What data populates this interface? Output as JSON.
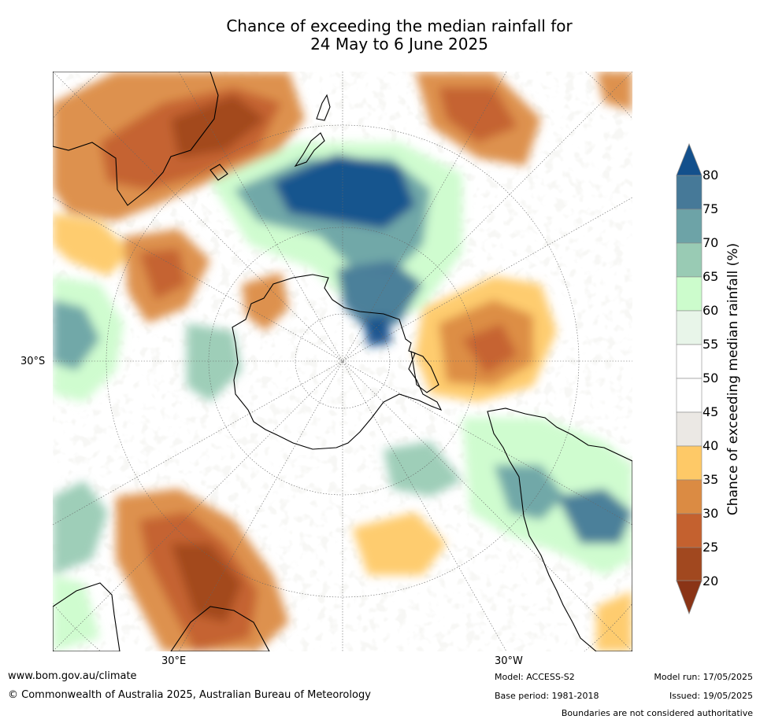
{
  "header": {
    "title_line1": "Chance of exceeding the median rainfall for",
    "title_line2": "24 May to 6 June 2025"
  },
  "map": {
    "lat_label": "30°S",
    "lon_label_east": "30°E",
    "lon_label_west": "30°W",
    "colors": {
      "c20": "#a1481f",
      "c25": "#c4612f",
      "c30": "#db8b43",
      "c35": "#fec967",
      "c40": "#ebe8e4",
      "c45": "#ffffff",
      "c50": "#ffffff",
      "c55": "#e8f5e9",
      "c60": "#ccfccc",
      "c65": "#99cbb4",
      "c70": "#6da3a7",
      "c75": "#467998",
      "c80": "#13508c"
    }
  },
  "colorbar": {
    "title": "Chance of exceeding median rainfall (%)",
    "ticks": [
      "80",
      "75",
      "70",
      "65",
      "60",
      "55",
      "50",
      "45",
      "40",
      "35",
      "30",
      "25",
      "20"
    ],
    "top_arrow_color": "#13508c",
    "bottom_arrow_color": "#8a3416"
  },
  "footer": {
    "website": "www.bom.gov.au/climate",
    "copyright": "© Commonwealth of Australia 2025, Australian Bureau of Meteorology",
    "model": "Model: ACCESS-S2",
    "base_period": "Base period: 1981-2018",
    "model_run": "Model run: 17/05/2025",
    "issued": "Issued: 19/05/2025",
    "disclaimer": "Boundaries are not considered authoritative"
  }
}
